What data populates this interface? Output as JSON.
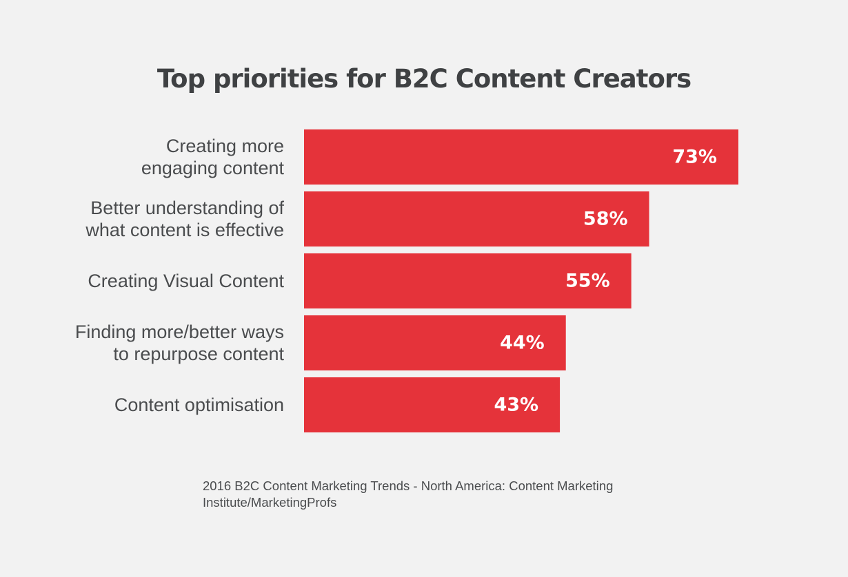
{
  "chart_data": {
    "type": "bar",
    "orientation": "horizontal",
    "title": "Top priorities for B2C Content Creators",
    "categories": [
      [
        "Creating more",
        "engaging content"
      ],
      [
        "Better understanding of",
        "what content is effective"
      ],
      [
        "Creating Visual Content"
      ],
      [
        "Finding more/better ways",
        "to repurpose content"
      ],
      [
        "Content optimisation"
      ]
    ],
    "values": [
      73,
      58,
      55,
      44,
      43
    ],
    "value_labels": [
      "73%",
      "58%",
      "55%",
      "44%",
      "43%"
    ],
    "unit": "%",
    "xlabel": "",
    "ylabel": "",
    "grid": false,
    "legend": "none",
    "bar_color": "#e5333a",
    "value_label_color": "#ffffff"
  },
  "source": "2016 B2C Content Marketing Trends - North America: Content Marketing Institute/MarketingProfs"
}
